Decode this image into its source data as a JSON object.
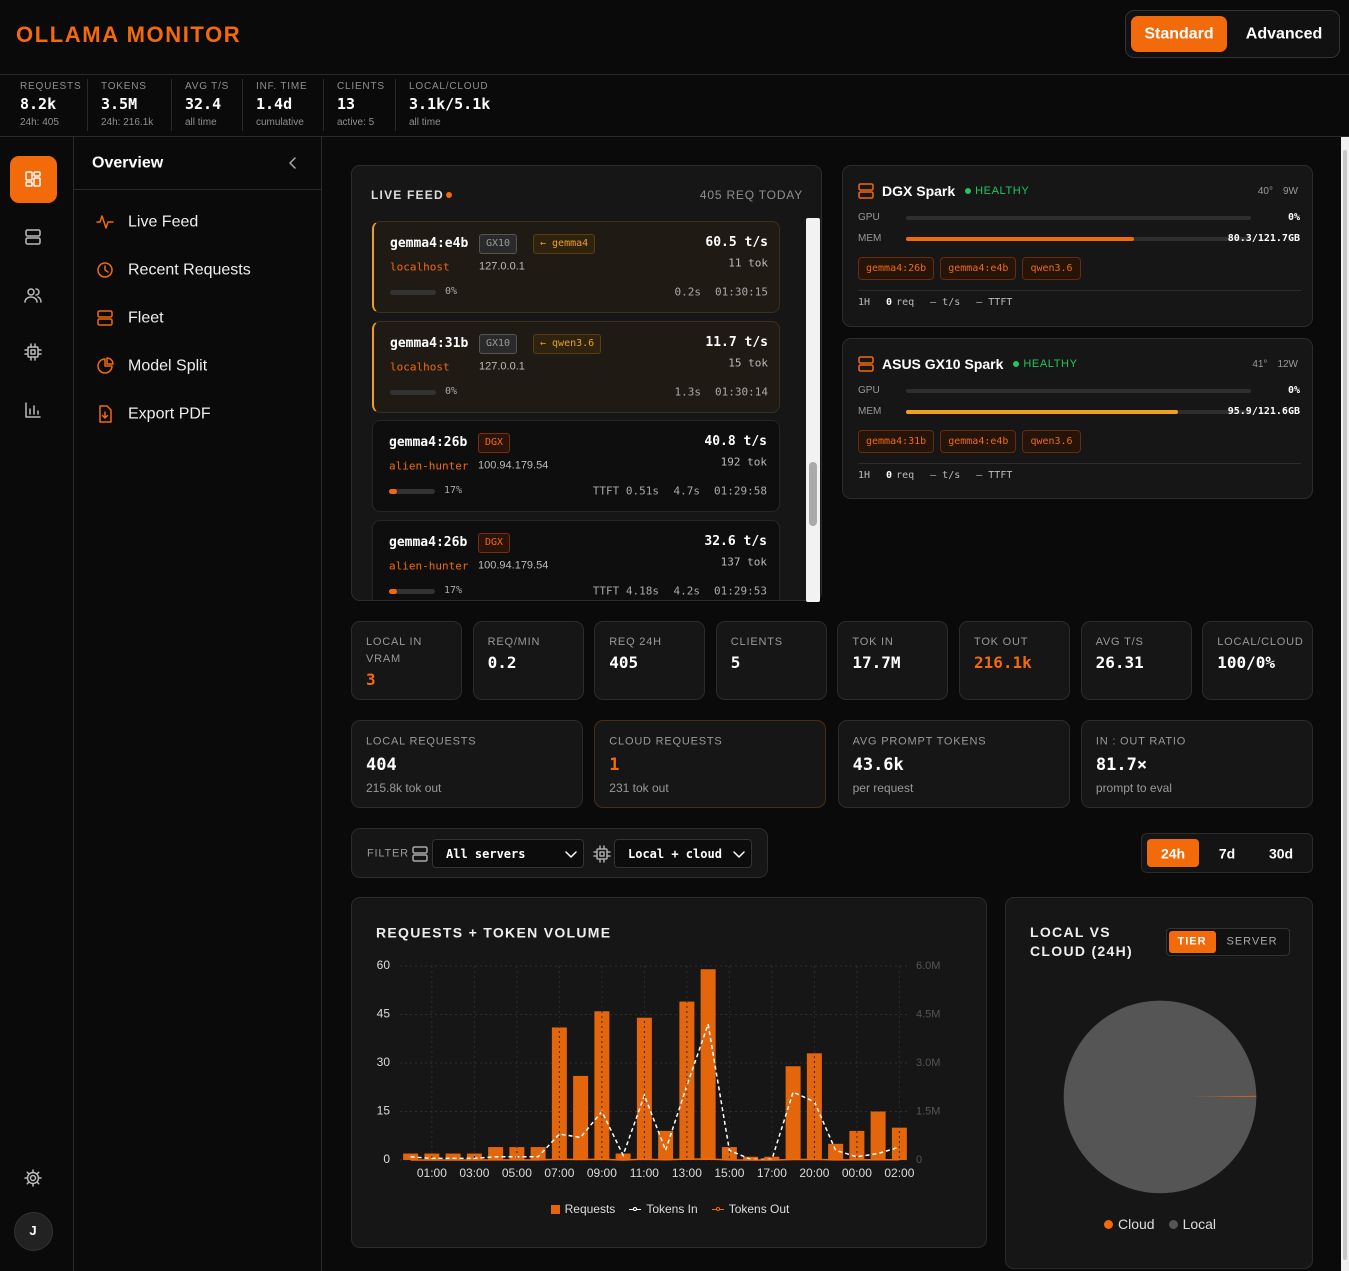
{
  "header": {
    "title": "OLLAMA MONITOR",
    "modes": [
      "Standard",
      "Advanced"
    ]
  },
  "stats": [
    {
      "label": "REQUESTS",
      "value": "8.2k",
      "sub": "24h: 405"
    },
    {
      "label": "TOKENS",
      "value": "3.5M",
      "sub": "24h: 216.1k"
    },
    {
      "label": "AVG T/S",
      "value": 32.4,
      "sub": "all time"
    },
    {
      "label": "INF. TIME",
      "value": "1.4d",
      "sub": "cumulative"
    },
    {
      "label": "CLIENTS",
      "value": 13,
      "sub": "active: 5"
    },
    {
      "label": "LOCAL/CLOUD",
      "value": "3.1k/5.1k",
      "sub": "all time"
    }
  ],
  "sidebar": {
    "title": "Overview",
    "items": [
      "Live Feed",
      "Recent Requests",
      "Fleet",
      "Model Split",
      "Export PDF"
    ],
    "avatar": "J"
  },
  "live_feed": {
    "title": "LIVE FEED",
    "today": "405 REQ TODAY",
    "items": [
      {
        "model": "gemma4:e4b",
        "server": "GX10",
        "route": "← gemma4",
        "client": "localhost",
        "ip": "127.0.0.1",
        "progress": 0,
        "progress_label": "0%",
        "rate": "60.5 t/s",
        "tokens": "11 tok",
        "duration": "0.2s",
        "time": "01:30:15"
      },
      {
        "model": "gemma4:31b",
        "server": "GX10",
        "route": "← qwen3.6",
        "client": "localhost",
        "ip": "127.0.0.1",
        "progress": 0,
        "progress_label": "0%",
        "rate": "11.7 t/s",
        "tokens": "15 tok",
        "duration": "1.3s",
        "time": "01:30:14"
      },
      {
        "model": "gemma4:26b",
        "server": "DGX",
        "client": "alien-hunter",
        "ip": "100.94.179.54",
        "progress": 17,
        "progress_label": "17%",
        "ttft": "TTFT 0.51s",
        "rate": "40.8 t/s",
        "tokens": "192 tok",
        "duration": "4.7s",
        "time": "01:29:58"
      },
      {
        "model": "gemma4:26b",
        "server": "DGX",
        "client": "alien-hunter",
        "ip": "100.94.179.54",
        "progress": 17,
        "progress_label": "17%",
        "ttft": "TTFT 4.18s",
        "rate": "32.6 t/s",
        "tokens": "137 tok",
        "duration": "4.2s",
        "time": "01:29:53"
      }
    ]
  },
  "servers": [
    {
      "name": "DGX Spark",
      "status": "HEALTHY",
      "temp": "40°",
      "power": "9W",
      "gpu_label": "GPU",
      "gpu": 0,
      "gpu_text": "0%",
      "mem_label": "MEM",
      "mem_used": 80.3,
      "mem_total": 121.7,
      "mem_text": "80.3/121.7GB",
      "bar_color": "#f26a0a",
      "models": [
        "gemma4:26b",
        "gemma4:e4b",
        "qwen3.6"
      ],
      "window": "1H",
      "req": "0",
      "req_unit": "req",
      "tps": "— t/s",
      "ttft": "— TTFT"
    },
    {
      "name": "ASUS GX10 Spark",
      "status": "HEALTHY",
      "temp": "41°",
      "power": "12W",
      "gpu_label": "GPU",
      "gpu": 0,
      "gpu_text": "0%",
      "mem_label": "MEM",
      "mem_used": 95.9,
      "mem_total": 121.6,
      "mem_text": "95.9/121.6GB",
      "bar_color": "#f0a020",
      "models": [
        "gemma4:31b",
        "gemma4:e4b",
        "qwen3.6"
      ],
      "window": "1H",
      "req": "0",
      "req_unit": "req",
      "tps": "— t/s",
      "ttft": "— TTFT"
    }
  ],
  "kpis": [
    {
      "label": "LOCAL IN VRAM",
      "value": 3,
      "highlight": true
    },
    {
      "label": "REQ/MIN",
      "value": 0.2
    },
    {
      "label": "REQ 24H",
      "value": 405
    },
    {
      "label": "CLIENTS",
      "value": 5
    },
    {
      "label": "TOK IN",
      "value": "17.7M"
    },
    {
      "label": "TOK OUT",
      "value": "216.1k",
      "highlight": true
    },
    {
      "label": "AVG T/S",
      "value": 26.31
    },
    {
      "label": "LOCAL/CLOUD",
      "value": "100/0%"
    }
  ],
  "summary": [
    {
      "label": "LOCAL REQUESTS",
      "value": 404,
      "sub": "215.8k tok out"
    },
    {
      "label": "CLOUD REQUESTS",
      "value": 1,
      "sub": "231 tok out",
      "highlight": true
    },
    {
      "label": "AVG PROMPT TOKENS",
      "value": "43.6k",
      "sub": "per request"
    },
    {
      "label": "IN : OUT RATIO",
      "value": "81.7×",
      "sub": "prompt to eval"
    }
  ],
  "filter": {
    "label": "FILTER",
    "server": "All servers",
    "tier": "Local + cloud",
    "ranges": [
      "24h",
      "7d",
      "30d"
    ]
  },
  "chart_data": [
    {
      "type": "bar",
      "title": "REQUESTS + TOKEN VOLUME",
      "categories": [
        null,
        "01:00",
        null,
        "03:00",
        null,
        "05:00",
        null,
        "07:00",
        null,
        "09:00",
        null,
        "11:00",
        null,
        "13:00",
        null,
        "15:00",
        null,
        "17:00",
        null,
        "20:00",
        null,
        "00:00",
        null,
        "02:00"
      ],
      "series": [
        {
          "name": "Requests",
          "type": "bar",
          "color": "#e3650c",
          "values": [
            2,
            2,
            2,
            2,
            4,
            4,
            4,
            41,
            26,
            46,
            2,
            44,
            9,
            49,
            59,
            4,
            1,
            1,
            29,
            33,
            5,
            9,
            15,
            10
          ]
        },
        {
          "name": "Tokens In",
          "type": "line",
          "axis": "y2",
          "dashed": true,
          "color": "#ffffff",
          "values": [
            100000,
            50000,
            50000,
            50000,
            100000,
            100000,
            100000,
            800000,
            700000,
            1500000,
            150000,
            2000000,
            300000,
            2300000,
            4200000,
            300000,
            20000,
            20000,
            2100000,
            1800000,
            300000,
            100000,
            200000,
            400000
          ]
        },
        {
          "name": "Tokens Out",
          "type": "line",
          "axis": "y2",
          "color": "#f26a0a",
          "values": [
            1000,
            1000,
            1000,
            1000,
            2000,
            2000,
            2000,
            22000,
            14000,
            25000,
            1000,
            24000,
            5000,
            27000,
            32000,
            2000,
            500,
            500,
            16000,
            18000,
            3000,
            5000,
            8000,
            5000
          ]
        }
      ],
      "ylim": [
        0,
        60
      ],
      "yticks": [
        0,
        15,
        30,
        45,
        60
      ],
      "y2lim": [
        0,
        6000000
      ],
      "y2ticks": [
        0,
        {
          "value": 1500000,
          "label": "1.5M"
        },
        {
          "value": 3000000,
          "label": "3.0M"
        },
        {
          "value": 4500000,
          "label": "4.5M"
        },
        {
          "value": 6000000,
          "label": "6.0M"
        }
      ],
      "grid": true,
      "legend": "bottom"
    },
    {
      "type": "pie",
      "title": "LOCAL VS CLOUD (24H)",
      "tabs": [
        "TIER",
        "SERVER"
      ],
      "categories": [
        "Cloud",
        "Local"
      ],
      "values": [
        1,
        404
      ],
      "colors": [
        "#f26a0a",
        "#555555"
      ],
      "legend": "bottom"
    }
  ]
}
